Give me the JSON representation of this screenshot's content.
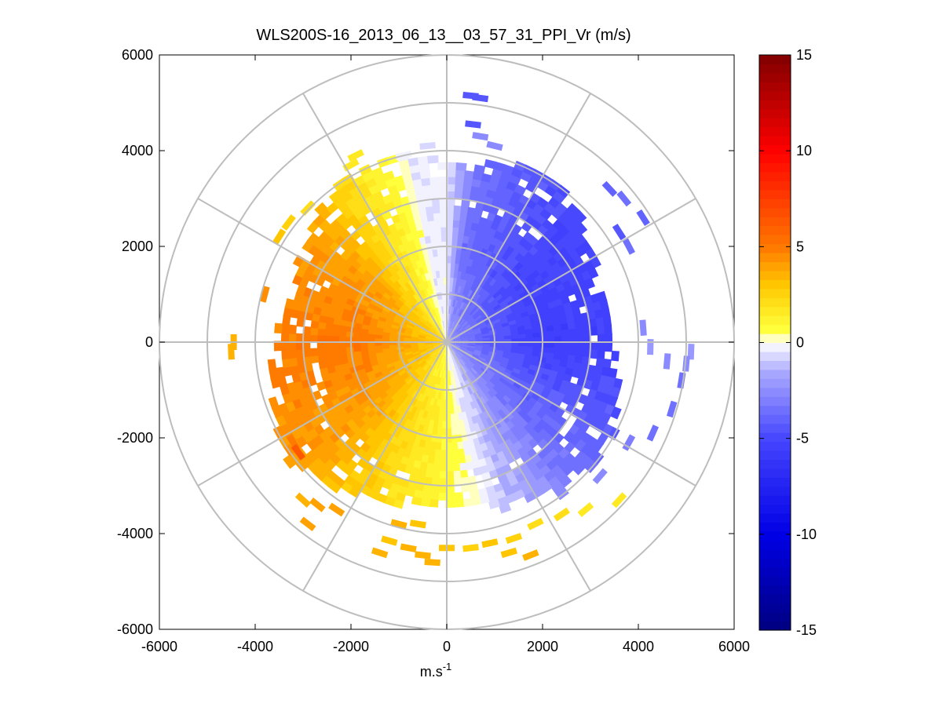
{
  "chart_data": {
    "type": "heatmap",
    "subtype": "polar-ppi",
    "title": "WLS200S-16_2013_06_13__03_57_31_PPI_Vr (m/s)",
    "xlabel": "m.s",
    "xlabel_sup": "-1",
    "ylabel": "",
    "xlim": [
      -6000,
      6000
    ],
    "ylim": [
      -6000,
      6000
    ],
    "xticks": [
      -6000,
      -4000,
      -2000,
      0,
      2000,
      4000,
      6000
    ],
    "yticks": [
      -6000,
      -4000,
      -2000,
      0,
      2000,
      4000,
      6000
    ],
    "xtick_labels": [
      "-6000",
      "-4000",
      "-2000",
      "0",
      "2000",
      "4000",
      "6000"
    ],
    "ytick_labels": [
      "-6000",
      "-4000",
      "-2000",
      "0",
      "2000",
      "4000",
      "6000"
    ],
    "polar_grid": {
      "ring_radii": [
        1000,
        2000,
        3000,
        4000,
        5000,
        6000
      ],
      "spoke_angles_deg": [
        0,
        30,
        60,
        90,
        120,
        150,
        180,
        210,
        240,
        270,
        300,
        330
      ]
    },
    "colorbar": {
      "min": -15,
      "max": 15,
      "ticks": [
        15,
        10,
        5,
        0,
        -5,
        -10,
        -15
      ],
      "tick_labels": [
        "15",
        "10",
        "5",
        "0",
        "-5",
        "-10",
        "-15"
      ],
      "colormap": "blue-white-yellow-red"
    },
    "field": {
      "description": "Radial velocity Vr (m/s) vs azimuth (deg clockwise from north) and range (m)",
      "max_range_m": 3900,
      "azimuth_profile": [
        {
          "azimuth_deg": 0,
          "vr": -0.3
        },
        {
          "azimuth_deg": 10,
          "vr": -3.5
        },
        {
          "azimuth_deg": 45,
          "vr": -5.0
        },
        {
          "azimuth_deg": 90,
          "vr": -5.5
        },
        {
          "azimuth_deg": 135,
          "vr": -3.5
        },
        {
          "azimuth_deg": 160,
          "vr": -1.0
        },
        {
          "azimuth_deg": 180,
          "vr": 1.0
        },
        {
          "azimuth_deg": 200,
          "vr": 2.0
        },
        {
          "azimuth_deg": 230,
          "vr": 4.0
        },
        {
          "azimuth_deg": 270,
          "vr": 5.0
        },
        {
          "azimuth_deg": 310,
          "vr": 4.0
        },
        {
          "azimuth_deg": 330,
          "vr": 2.0
        },
        {
          "azimuth_deg": 345,
          "vr": 0.5
        },
        {
          "azimuth_deg": 350,
          "vr": -0.5
        }
      ]
    },
    "scattered_bins": [
      {
        "x": 500,
        "y": 5150,
        "vr": -4.5
      },
      {
        "x": 700,
        "y": 5100,
        "vr": -4.5
      },
      {
        "x": 550,
        "y": 4550,
        "vr": -4.5
      },
      {
        "x": 700,
        "y": 4300,
        "vr": -2.5
      },
      {
        "x": 1000,
        "y": 4100,
        "vr": -2.5
      },
      {
        "x": 3400,
        "y": 3200,
        "vr": -4.0
      },
      {
        "x": 3700,
        "y": 3000,
        "vr": -3.5
      },
      {
        "x": 3600,
        "y": 2300,
        "vr": -4.5
      },
      {
        "x": 4100,
        "y": 2600,
        "vr": -4.0
      },
      {
        "x": 3800,
        "y": 2000,
        "vr": -3.5
      },
      {
        "x": 4100,
        "y": 300,
        "vr": -2.5
      },
      {
        "x": 4250,
        "y": -100,
        "vr": -2.0
      },
      {
        "x": 4600,
        "y": -400,
        "vr": -2.5
      },
      {
        "x": 5100,
        "y": -200,
        "vr": -2.0
      },
      {
        "x": 4900,
        "y": -800,
        "vr": -3.5
      },
      {
        "x": 5000,
        "y": -450,
        "vr": -2.5
      },
      {
        "x": 4700,
        "y": -1400,
        "vr": -3.5
      },
      {
        "x": 4300,
        "y": -1900,
        "vr": -3.5
      },
      {
        "x": 3800,
        "y": -2100,
        "vr": -3.0
      },
      {
        "x": 3200,
        "y": -2800,
        "vr": -2.5
      },
      {
        "x": 3600,
        "y": -3300,
        "vr": 1.5
      },
      {
        "x": 2900,
        "y": -3500,
        "vr": 1.5
      },
      {
        "x": 2400,
        "y": -3600,
        "vr": 2.0
      },
      {
        "x": 1850,
        "y": -3800,
        "vr": 2.0
      },
      {
        "x": 1400,
        "y": -4100,
        "vr": 2.5
      },
      {
        "x": 1750,
        "y": -4450,
        "vr": 3.5
      },
      {
        "x": 1300,
        "y": -4400,
        "vr": 3.0
      },
      {
        "x": 900,
        "y": -4200,
        "vr": 3.0
      },
      {
        "x": 500,
        "y": -4300,
        "vr": 2.5
      },
      {
        "x": 0,
        "y": -4300,
        "vr": 3.0
      },
      {
        "x": -300,
        "y": -4600,
        "vr": 3.5
      },
      {
        "x": -500,
        "y": -4450,
        "vr": 3.5
      },
      {
        "x": -800,
        "y": -4300,
        "vr": 3.5
      },
      {
        "x": -1200,
        "y": -4150,
        "vr": 3.0
      },
      {
        "x": -1400,
        "y": -4400,
        "vr": 3.5
      },
      {
        "x": -600,
        "y": -3800,
        "vr": 3.0
      },
      {
        "x": -1000,
        "y": -3800,
        "vr": 3.5
      },
      {
        "x": -2700,
        "y": -3400,
        "vr": 4.0
      },
      {
        "x": -2900,
        "y": -3800,
        "vr": 4.0
      },
      {
        "x": -3000,
        "y": -3300,
        "vr": 3.5
      },
      {
        "x": -2300,
        "y": -3500,
        "vr": 4.0
      },
      {
        "x": -3200,
        "y": -2100,
        "vr": 5.0
      },
      {
        "x": -3100,
        "y": -2300,
        "vr": 6.5
      },
      {
        "x": -4500,
        "y": -200,
        "vr": 3.5
      },
      {
        "x": -4450,
        "y": 0,
        "vr": 3.5
      },
      {
        "x": -3800,
        "y": 1000,
        "vr": 4.5
      },
      {
        "x": -3500,
        "y": 2200,
        "vr": 3.0
      },
      {
        "x": -3300,
        "y": 2500,
        "vr": 2.5
      },
      {
        "x": -2900,
        "y": 2800,
        "vr": 2.0
      },
      {
        "x": -2000,
        "y": 3700,
        "vr": 1.5
      },
      {
        "x": -1900,
        "y": 3900,
        "vr": 1.5
      },
      {
        "x": -400,
        "y": 4100,
        "vr": -0.5
      },
      {
        "x": -900,
        "y": 3900,
        "vr": -0.3
      }
    ]
  }
}
